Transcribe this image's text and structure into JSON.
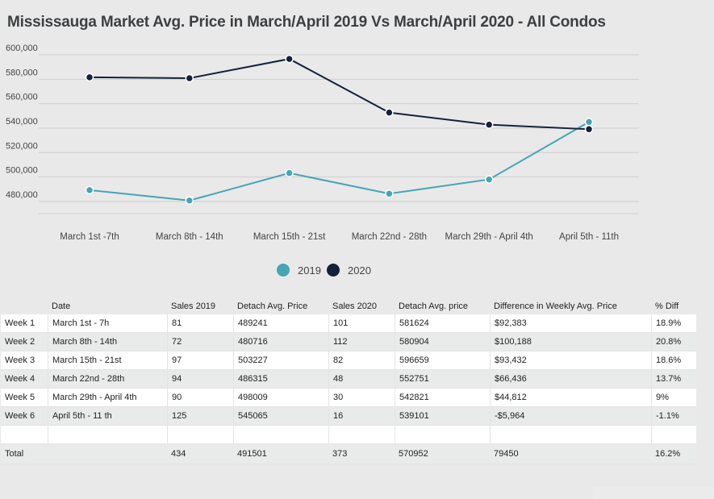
{
  "title": "Mississauga Market Avg. Price in March/April 2019 Vs March/April 2020 - All Condos",
  "colors": {
    "series_2019": "#45a5b4",
    "series_2020": "#14213b",
    "grid": "#cfcfcf"
  },
  "chart_data": {
    "type": "line",
    "title": "Mississauga Market Avg. Price in March/April 2019 Vs March/April 2020 - All Condos",
    "categories": [
      "March 1st -7th",
      "March 8th - 14th",
      "March 15th - 21st",
      "March 22nd - 28th",
      "March 29th - April 4th",
      "April 5th - 11th"
    ],
    "y_ticks": [
      "600,000",
      "580,000",
      "560,000",
      "540,000",
      "520,000",
      "500,000",
      "480,000"
    ],
    "ylim": [
      470000,
      600000
    ],
    "grid": true,
    "legend_position": "bottom",
    "series": [
      {
        "name": "2019",
        "color": "#45a5b4",
        "values": [
          489241,
          480716,
          503227,
          486315,
          498009,
          545065
        ]
      },
      {
        "name": "2020",
        "color": "#14213b",
        "values": [
          581624,
          580904,
          596659,
          552751,
          542821,
          539101
        ]
      }
    ]
  },
  "table": {
    "headers": [
      "",
      "Date",
      "Sales 2019",
      "Detach Avg. Price",
      "Sales 2020",
      "Detach Avg. price",
      "Difference in Weekly Avg. Price",
      "% Diff"
    ],
    "rows": [
      [
        "Week 1",
        "March 1st - 7h",
        "81",
        "489241",
        "101",
        "581624",
        "$92,383",
        "18.9%"
      ],
      [
        "Week 2",
        "March 8th - 14th",
        "72",
        "480716",
        "112",
        "580904",
        "$100,188",
        "20.8%"
      ],
      [
        "Week 3",
        "March 15th - 21st",
        "97",
        "503227",
        "82",
        "596659",
        "$93,432",
        "18.6%"
      ],
      [
        "Week 4",
        "March 22nd - 28th",
        "94",
        "486315",
        "48",
        "552751",
        "$66,436",
        "13.7%"
      ],
      [
        "Week 5",
        "March 29th - April 4th",
        "90",
        "498009",
        "30",
        "542821",
        "$44,812",
        "9%"
      ],
      [
        "Week 6",
        "April 5th - 11 th",
        "125",
        "545065",
        "16",
        "539101",
        "-$5,964",
        "-1.1%"
      ],
      [
        "",
        "",
        "",
        "",
        "",
        "",
        "",
        ""
      ]
    ],
    "total": [
      "Total",
      "",
      "434",
      "491501",
      "373",
      "570952",
      "79450",
      "16.2%"
    ]
  }
}
